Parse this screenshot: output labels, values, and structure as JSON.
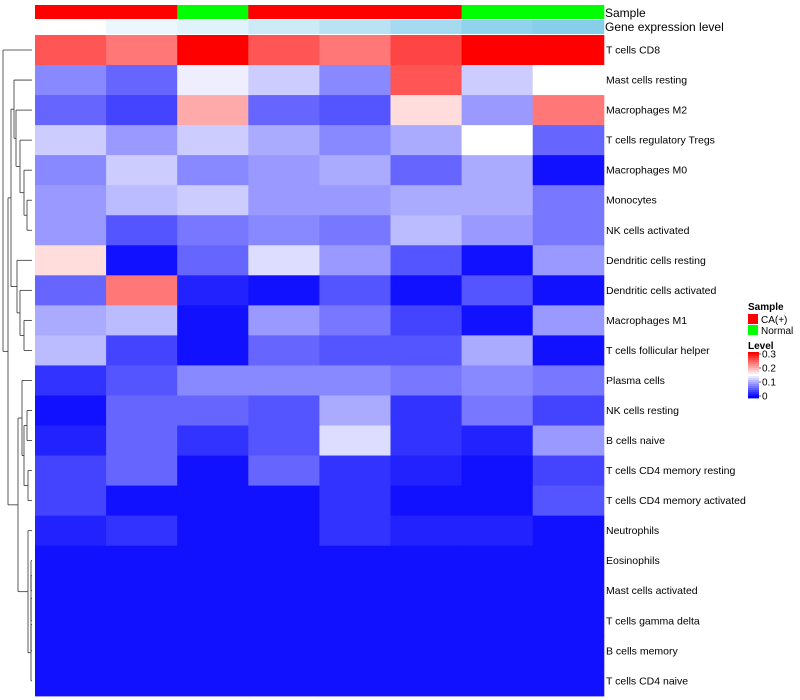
{
  "chart_data": {
    "type": "heatmap",
    "annotation_tracks": [
      {
        "name": "Sample",
        "values": [
          "CA(+)",
          "CA(+)",
          "Normal",
          "CA(+)",
          "CA(+)",
          "CA(+)",
          "Normal",
          "Normal"
        ]
      },
      {
        "name": "Gene expression level",
        "values": [
          0.0,
          0.02,
          0.03,
          0.05,
          0.07,
          0.09,
          0.11,
          0.12
        ]
      }
    ],
    "rows": [
      "T cells CD8",
      "Mast cells resting",
      "Macrophages M2",
      "T cells regulatory  Tregs",
      "Macrophages M0",
      "Monocytes",
      "NK cells activated",
      "Dendritic cells resting",
      "Dendritic cells activated",
      "Macrophages M1",
      "T cells follicular helper",
      "Plasma cells",
      "NK cells resting",
      "B cells naive",
      "T cells CD4 memory resting",
      "T cells CD4 memory activated",
      "Neutrophils",
      "Eosinophils",
      "Mast cells activated",
      "T cells gamma delta",
      "B cells memory",
      "T cells CD4 naive"
    ],
    "values": [
      [
        0.25,
        0.23,
        0.3,
        0.25,
        0.23,
        0.26,
        0.3,
        0.3
      ],
      [
        0.08,
        0.06,
        0.14,
        0.12,
        0.08,
        0.25,
        0.12,
        0.15
      ],
      [
        0.06,
        0.04,
        0.2,
        0.06,
        0.05,
        0.17,
        0.09,
        0.23
      ],
      [
        0.12,
        0.09,
        0.12,
        0.1,
        0.08,
        0.1,
        0.15,
        0.06
      ],
      [
        0.08,
        0.12,
        0.08,
        0.09,
        0.1,
        0.06,
        0.1,
        0.01
      ],
      [
        0.09,
        0.11,
        0.12,
        0.09,
        0.09,
        0.1,
        0.1,
        0.07
      ],
      [
        0.09,
        0.05,
        0.07,
        0.08,
        0.07,
        0.11,
        0.09,
        0.07
      ],
      [
        0.17,
        0.01,
        0.06,
        0.13,
        0.09,
        0.05,
        0.01,
        0.09
      ],
      [
        0.06,
        0.23,
        0.02,
        0.01,
        0.05,
        0.01,
        0.05,
        0.01
      ],
      [
        0.1,
        0.11,
        0.01,
        0.09,
        0.07,
        0.04,
        0.01,
        0.09
      ],
      [
        0.11,
        0.04,
        0.01,
        0.06,
        0.05,
        0.05,
        0.1,
        0.01
      ],
      [
        0.03,
        0.05,
        0.08,
        0.08,
        0.08,
        0.07,
        0.08,
        0.07
      ],
      [
        0.01,
        0.06,
        0.06,
        0.05,
        0.1,
        0.03,
        0.07,
        0.04
      ],
      [
        0.02,
        0.06,
        0.03,
        0.05,
        0.13,
        0.03,
        0.02,
        0.09
      ],
      [
        0.04,
        0.06,
        0.01,
        0.06,
        0.03,
        0.02,
        0.01,
        0.04
      ],
      [
        0.04,
        0.01,
        0.01,
        0.01,
        0.03,
        0.01,
        0.01,
        0.05
      ],
      [
        0.02,
        0.03,
        0.01,
        0.01,
        0.03,
        0.02,
        0.02,
        0.01
      ],
      [
        0.01,
        0.01,
        0.01,
        0.01,
        0.01,
        0.01,
        0.01,
        0.01
      ],
      [
        0.01,
        0.01,
        0.01,
        0.01,
        0.01,
        0.01,
        0.01,
        0.01
      ],
      [
        0.01,
        0.01,
        0.01,
        0.01,
        0.01,
        0.01,
        0.01,
        0.01
      ],
      [
        0.01,
        0.01,
        0.01,
        0.01,
        0.01,
        0.01,
        0.01,
        0.01
      ],
      [
        0.01,
        0.01,
        0.01,
        0.01,
        0.01,
        0.01,
        0.01,
        0.01
      ]
    ],
    "color_scale": {
      "low": "#0000ff",
      "mid": "#ffffff",
      "high": "#ff0000",
      "range": [
        0,
        0.3
      ],
      "mid_value": 0.15
    },
    "expression_scale": {
      "low": "#ffffff",
      "high": "#87ceeb"
    },
    "legend": {
      "placement": "right",
      "sample_title": "Sample",
      "sample_items": [
        {
          "label": "CA(+)",
          "color": "#ff0000"
        },
        {
          "label": "Normal",
          "color": "#00ff00"
        }
      ],
      "level_title": "Level",
      "level_ticks": [
        "0.3",
        "0.2",
        "0.1",
        "0"
      ]
    },
    "row_dendrogram": true
  }
}
